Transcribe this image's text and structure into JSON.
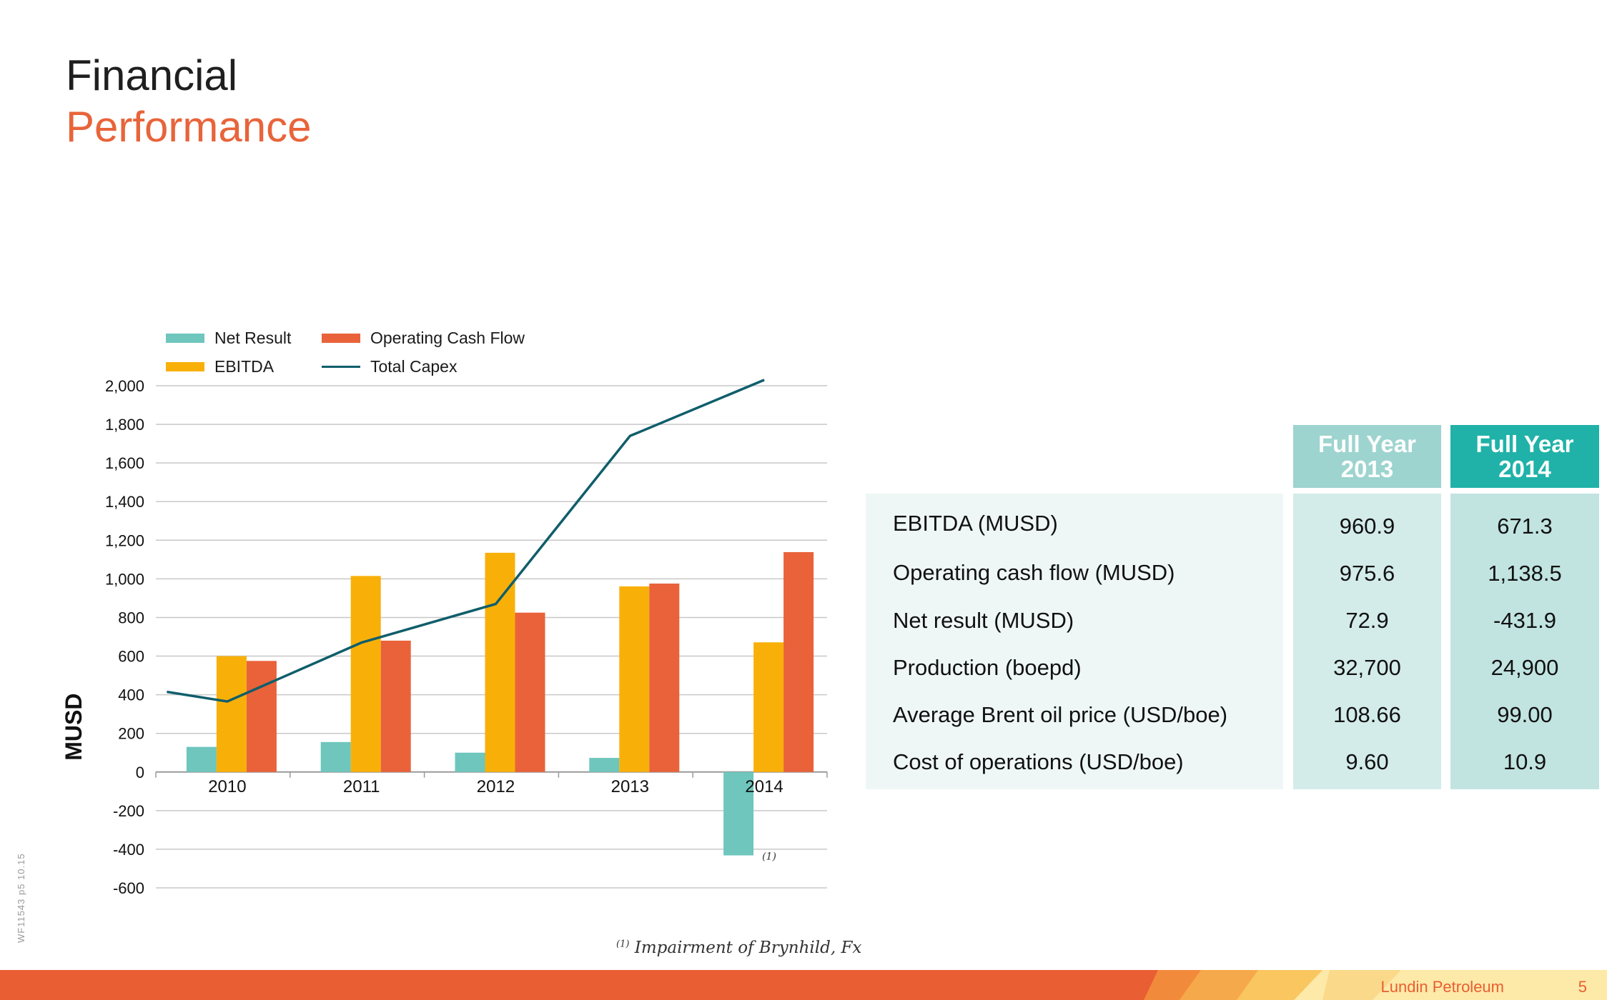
{
  "slide": {
    "title_line1": "Financial",
    "title_line2": "Performance",
    "footnote_marker": "(1)",
    "footnote_text": "Impairment of Brynhild, Fx",
    "side_code": "WF11543  p5  10.15",
    "company": "Lundin Petroleum",
    "page_number": "5"
  },
  "colors": {
    "net_result": "#6ec6bd",
    "ebitda": "#f8b009",
    "operating_cash_flow": "#e9623a",
    "total_capex": "#0f5e6b",
    "accent_orange": "#e8643a",
    "teal_dark": "#20b2a8",
    "teal_light": "#9dd4cf"
  },
  "chart_data": {
    "type": "bar",
    "categories": [
      "2010",
      "2011",
      "2012",
      "2013",
      "2014"
    ],
    "series": [
      {
        "name": "Net Result",
        "values": [
          130,
          155,
          100,
          72.9,
          -431.9
        ]
      },
      {
        "name": "EBITDA",
        "values": [
          600,
          1015,
          1135,
          960.9,
          671.3
        ]
      },
      {
        "name": "Operating Cash Flow",
        "values": [
          575,
          680,
          825,
          975.6,
          1138.5
        ]
      },
      {
        "name": "Total Capex",
        "type": "line",
        "x": [
          2009.55,
          2010,
          2011,
          2012,
          2013,
          2014
        ],
        "values": [
          415,
          365,
          670,
          870,
          1740,
          2030
        ]
      }
    ],
    "ylabel": "MUSD",
    "yticks": [
      "2,000",
      "1,800",
      "1,600",
      "1,400",
      "1,200",
      "1,000",
      "800",
      "600",
      "400",
      "200",
      "0",
      "-200",
      "-400",
      "-600"
    ],
    "ylim": [
      -600,
      2000
    ],
    "annotations": [
      {
        "category": "2014",
        "series": "Net Result",
        "text": "(1)"
      }
    ],
    "grid": true,
    "legend_position": "top-left"
  },
  "table": {
    "headers": [
      {
        "line1": "Full Year",
        "line2": "2013"
      },
      {
        "line1": "Full Year",
        "line2": "2014"
      }
    ],
    "rows": [
      {
        "label": "EBITDA (MUSD)",
        "fy2013": "960.9",
        "fy2014": "671.3"
      },
      {
        "label": "Operating cash flow (MUSD)",
        "fy2013": "975.6",
        "fy2014": "1,138.5"
      },
      {
        "label": "Net result (MUSD)",
        "fy2013": "72.9",
        "fy2014": "-431.9"
      },
      {
        "label": "Production (boepd)",
        "fy2013": "32,700",
        "fy2014": "24,900"
      },
      {
        "label": "Average Brent oil price (USD/boe)",
        "fy2013": "108.66",
        "fy2014": "99.00"
      },
      {
        "label": "Cost of operations (USD/boe)",
        "fy2013": "9.60",
        "fy2014": "10.9"
      }
    ]
  }
}
